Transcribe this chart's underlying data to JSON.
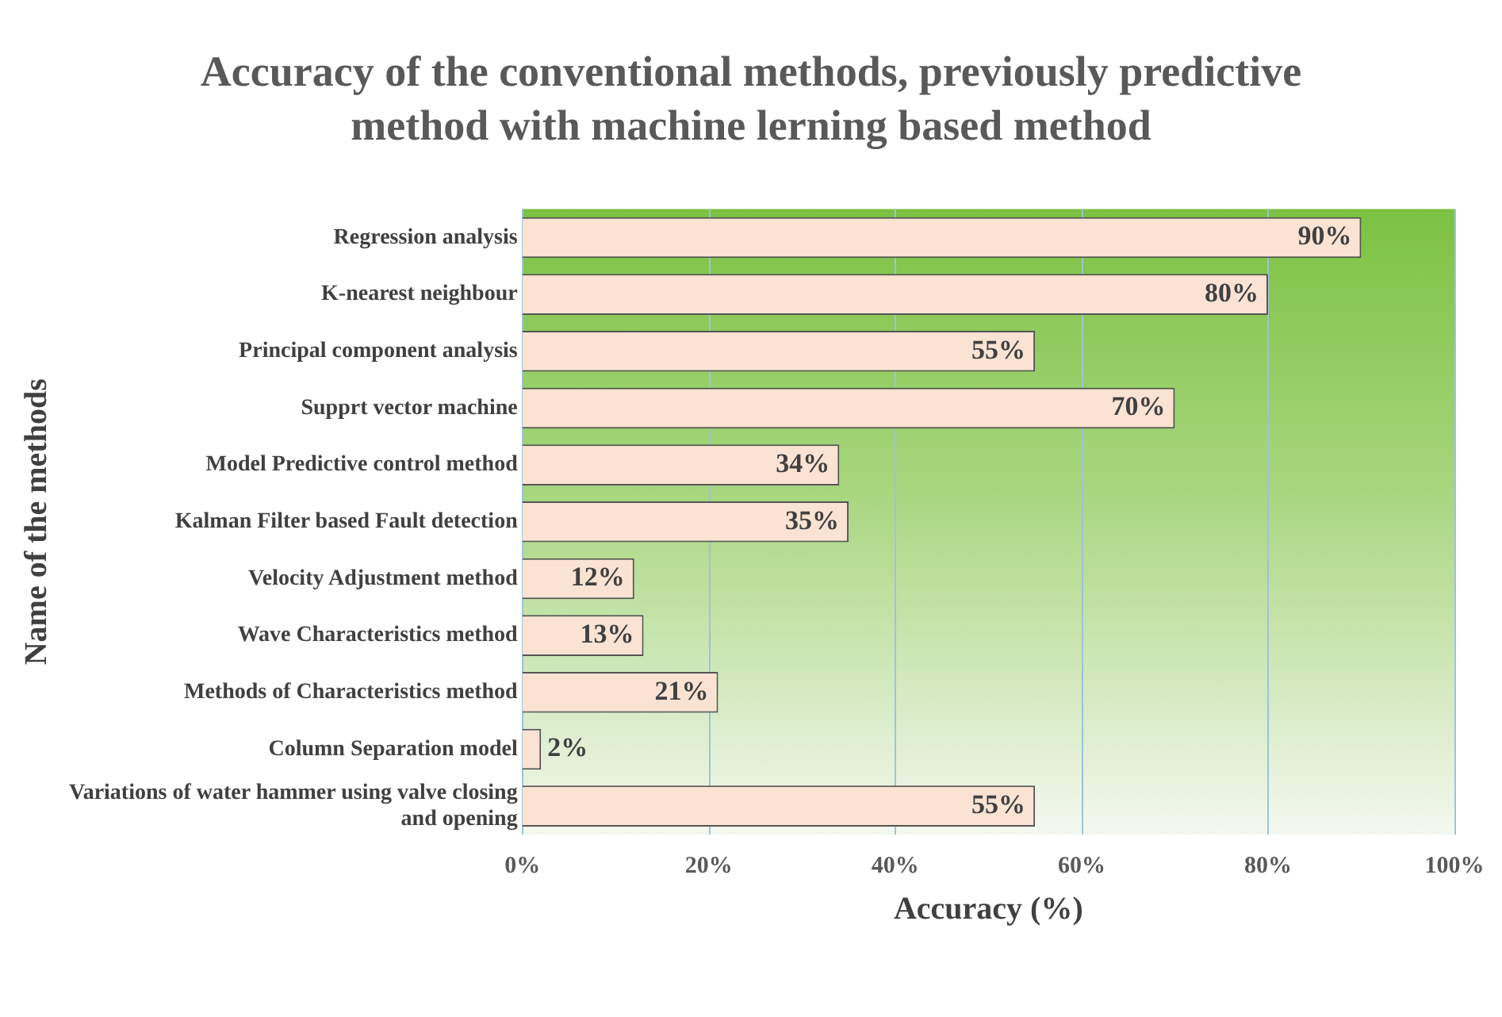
{
  "chart_data": {
    "type": "bar",
    "orientation": "horizontal",
    "title": "Accuracy of the conventional methods, previously predictive method with machine lerning based method",
    "xlabel": "Accuracy (%)",
    "ylabel": "Name of the methods",
    "categories": [
      "Regression analysis",
      "K-nearest neighbour",
      "Principal component analysis",
      "Supprt vector machine",
      "Model Predictive control method",
      "Kalman Filter based Fault detection",
      "Velocity Adjustment method",
      "Wave Characteristics method",
      "Methods of Characteristics method",
      "Column Separation model",
      "Variations of water hammer using valve closing and opening"
    ],
    "values": [
      90,
      80,
      55,
      70,
      34,
      35,
      12,
      13,
      21,
      2,
      55
    ],
    "value_labels": [
      "90%",
      "80%",
      "55%",
      "70%",
      "34%",
      "35%",
      "12%",
      "13%",
      "21%",
      "2%",
      "55%"
    ],
    "color": "#fbe3d3",
    "xlim": [
      0,
      100
    ],
    "xticks": [
      {
        "value": 0,
        "label": "0%"
      },
      {
        "value": 20,
        "label": "20%"
      },
      {
        "value": 40,
        "label": "40%"
      },
      {
        "value": 60,
        "label": "60%"
      },
      {
        "value": 80,
        "label": "80%"
      },
      {
        "value": 100,
        "label": "100%"
      }
    ],
    "grid": "x",
    "legend": false
  }
}
